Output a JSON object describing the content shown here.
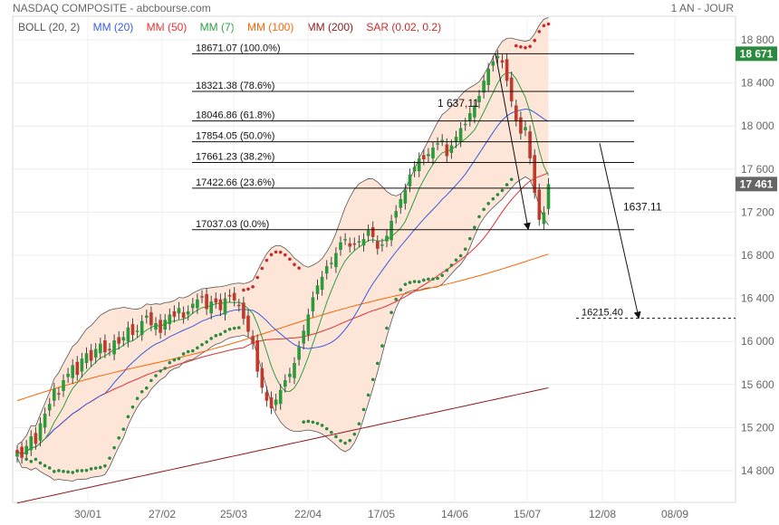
{
  "header": {
    "title": "NASDAQ COMPOSITE - abcbourse.com",
    "period": "1 AN - JOUR"
  },
  "legend": [
    {
      "label": "BOLL (20, 2)",
      "color": "#555555"
    },
    {
      "label": "MM (20)",
      "color": "#3b5bdb"
    },
    {
      "label": "MM (50)",
      "color": "#e03131"
    },
    {
      "label": "MM (7)",
      "color": "#2f9e44"
    },
    {
      "label": "MM (100)",
      "color": "#f76707"
    },
    {
      "label": "MM (200)",
      "color": "#8b1a1a"
    },
    {
      "label": "SAR (0.02, 0.2)",
      "color": "#c92a2a"
    }
  ],
  "chart_data": {
    "type": "candlestick",
    "title": "NASDAQ COMPOSITE",
    "ylim": [
      14500,
      18900
    ],
    "y_ticks": [
      14800,
      15200,
      15600,
      16000,
      16400,
      16800,
      17200,
      17600,
      18000,
      18400,
      18800
    ],
    "y_tick_labels": [
      "14 800",
      "15 200",
      "15 600",
      "16 000",
      "16 400",
      "16 800",
      "17 200",
      "17 600",
      "18 000",
      "18 400",
      "18 800"
    ],
    "x_ticks": [
      "30/01",
      "27/02",
      "25/03",
      "22/04",
      "17/05",
      "14/06",
      "15/07",
      "12/08",
      "08/09"
    ],
    "price_tags": [
      {
        "value": 18671,
        "label": "18 671",
        "color": "#2b8a3e"
      },
      {
        "value": 17461,
        "label": "17 461",
        "color": "#666666"
      }
    ],
    "fibonacci": [
      {
        "value": 18671.07,
        "label": "18671.07  (100.0%)"
      },
      {
        "value": 18321.38,
        "label": "18321.38  (78.6%)"
      },
      {
        "value": 18046.86,
        "label": "18046.86  (61.8%)"
      },
      {
        "value": 17854.05,
        "label": "17854.05  (50.0%)"
      },
      {
        "value": 17661.23,
        "label": "17661.23  (38.2%)"
      },
      {
        "value": 17422.66,
        "label": "17422.66  (23.6%)"
      },
      {
        "value": 17037.03,
        "label": "17037.03  (0.0%)"
      }
    ],
    "annotations": [
      {
        "label": "1 637,11"
      },
      {
        "label": "1637.11"
      },
      {
        "label": "16215.40",
        "value": 16215.4
      }
    ],
    "closes": [
      14980,
      14920,
      15030,
      15120,
      15050,
      15240,
      15330,
      15420,
      15560,
      15510,
      15640,
      15700,
      15780,
      15690,
      15840,
      15890,
      15820,
      15930,
      15980,
      15900,
      15920,
      16010,
      15980,
      16040,
      16130,
      16060,
      16100,
      16190,
      16240,
      16150,
      16170,
      16080,
      16200,
      16250,
      16230,
      16310,
      16220,
      16280,
      16350,
      16390,
      16410,
      16300,
      16370,
      16360,
      16290,
      16400,
      16420,
      16380,
      16330,
      16210,
      16090,
      15980,
      15720,
      15570,
      15450,
      15380,
      15460,
      15550,
      15640,
      15700,
      15800,
      15950,
      16100,
      16250,
      16410,
      16520,
      16600,
      16700,
      16730,
      16820,
      16920,
      16950,
      16880,
      16900,
      16930,
      16950,
      17030,
      16970,
      16860,
      16900,
      16980,
      17120,
      17210,
      17320,
      17410,
      17550,
      17620,
      17700,
      17690,
      17740,
      17800,
      17840,
      17870,
      17720,
      17820,
      17900,
      17980,
      18020,
      18120,
      18190,
      18280,
      18420,
      18530,
      18600,
      18650,
      18590,
      18420,
      18230,
      18050,
      17930,
      17990,
      17700,
      17380,
      17130,
      17200,
      17461
    ]
  }
}
